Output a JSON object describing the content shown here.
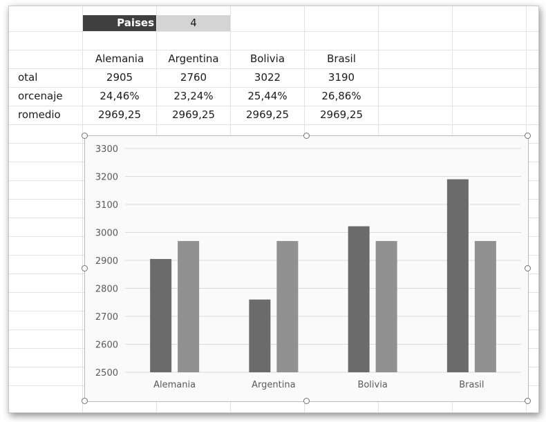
{
  "sheet": {
    "paises_label": "Paises",
    "paises_value": "4",
    "headers": [
      "Alemania",
      "Argentina",
      "Bolivia",
      "Brasil"
    ],
    "rows": [
      {
        "label": "otal",
        "values": [
          "2905",
          "2760",
          "3022",
          "3190"
        ]
      },
      {
        "label": "orcenaje",
        "values": [
          "24,46%",
          "23,24%",
          "25,44%",
          "26,86%"
        ]
      },
      {
        "label": "romedio",
        "values": [
          "2969,25",
          "2969,25",
          "2969,25",
          "2969,25"
        ]
      }
    ]
  },
  "chart_data": {
    "type": "bar",
    "categories": [
      "Alemania",
      "Argentina",
      "Bolivia",
      "Brasil"
    ],
    "series": [
      {
        "values": [
          2905,
          2760,
          3022,
          3190
        ],
        "color": "#6b6b6b"
      },
      {
        "values": [
          2969.25,
          2969.25,
          2969.25,
          2969.25
        ],
        "color": "#919191"
      }
    ],
    "ylim": [
      2500,
      3300
    ],
    "yticks": [
      2500,
      2600,
      2700,
      2800,
      2900,
      3000,
      3100,
      3200,
      3300
    ],
    "grid": true,
    "title": "",
    "xlabel": "",
    "ylabel": ""
  }
}
